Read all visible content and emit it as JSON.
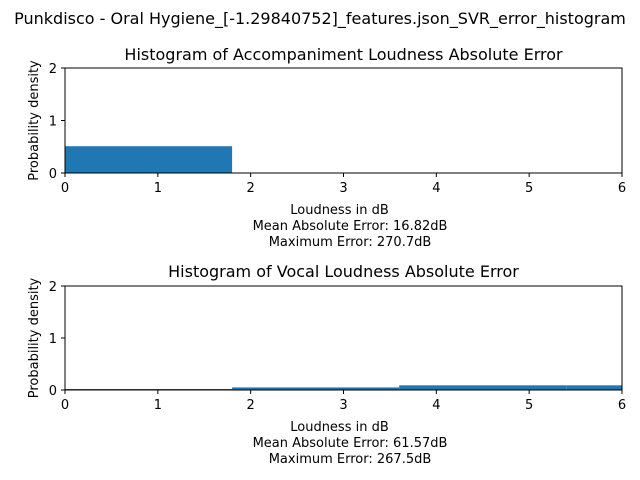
{
  "figure": {
    "title": "Punkdisco - Oral Hygiene_[-1.29840752]_features.json_SVR_error_histogram"
  },
  "chart_data": [
    {
      "type": "bar",
      "title": "Histogram of Accompaniment Loudness Absolute Error",
      "xlabel": "Loudness in dB",
      "ylabel": "Probability density",
      "xlim": [
        0,
        6
      ],
      "ylim": [
        0,
        2
      ],
      "x_ticks": [
        "0",
        "1",
        "2",
        "3",
        "4",
        "5",
        "6"
      ],
      "y_ticks": [
        "0",
        "1",
        "2"
      ],
      "bins": [
        {
          "x0": 0.0,
          "x1": 1.8,
          "value": 0.51
        },
        {
          "x0": 1.8,
          "x1": 3.6,
          "value": 0.0
        },
        {
          "x0": 3.6,
          "x1": 5.4,
          "value": 0.0
        },
        {
          "x0": 5.4,
          "x1": 6.0,
          "value": 0.0
        }
      ],
      "color": "#1f77b4",
      "annotations": [
        "Mean Absolute Error: 16.82dB",
        "Maximum Error: 270.7dB"
      ],
      "grid": false
    },
    {
      "type": "bar",
      "title": "Histogram of Vocal Loudness Absolute Error",
      "xlabel": "Loudness in dB",
      "ylabel": "Probability density",
      "xlim": [
        0,
        6
      ],
      "ylim": [
        0,
        2
      ],
      "x_ticks": [
        "0",
        "1",
        "2",
        "3",
        "4",
        "5",
        "6"
      ],
      "y_ticks": [
        "0",
        "1",
        "2"
      ],
      "bins": [
        {
          "x0": 0.0,
          "x1": 1.8,
          "value": 0.02
        },
        {
          "x0": 1.8,
          "x1": 3.6,
          "value": 0.05
        },
        {
          "x0": 3.6,
          "x1": 5.4,
          "value": 0.09
        },
        {
          "x0": 5.4,
          "x1": 6.0,
          "value": 0.09
        }
      ],
      "color": "#1f77b4",
      "annotations": [
        "Mean Absolute Error: 61.57dB",
        "Maximum Error: 267.5dB"
      ],
      "grid": false
    }
  ]
}
